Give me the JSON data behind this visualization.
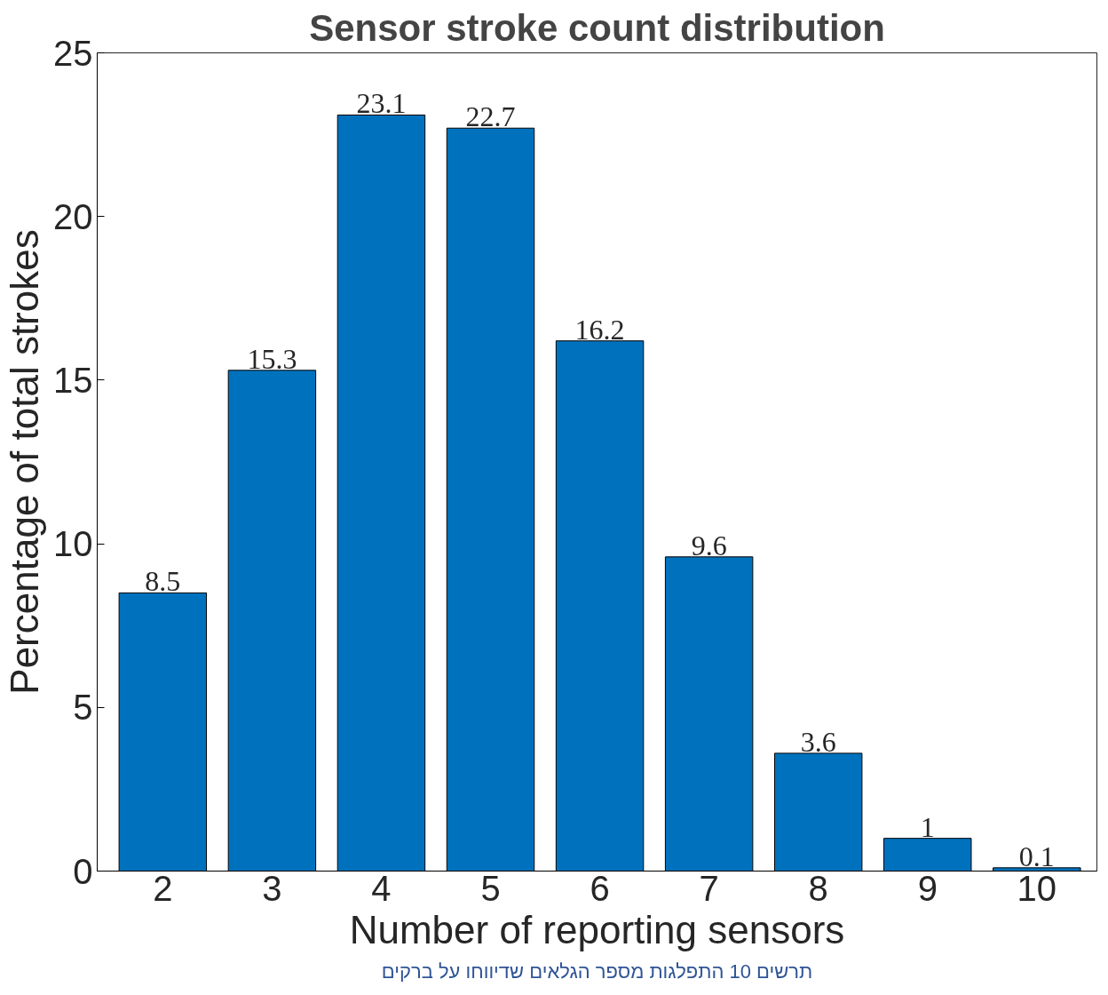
{
  "chart_data": {
    "type": "bar",
    "title": "Sensor stroke count distribution",
    "xlabel": "Number of reporting sensors",
    "ylabel": "Percentage of total strokes",
    "categories": [
      "2",
      "3",
      "4",
      "5",
      "6",
      "7",
      "8",
      "9",
      "10"
    ],
    "values": [
      8.5,
      15.3,
      23.1,
      22.7,
      16.2,
      9.6,
      3.6,
      1,
      0.1
    ],
    "color": "#0072bd",
    "ylim": [
      0,
      25
    ],
    "yticks": [
      0,
      5,
      10,
      15,
      20,
      25
    ],
    "grid": false,
    "data_labels": true,
    "annotations": [
      "תרשים 10 התפלגות מספר הגלאים שדיווחו על ברקים"
    ]
  }
}
